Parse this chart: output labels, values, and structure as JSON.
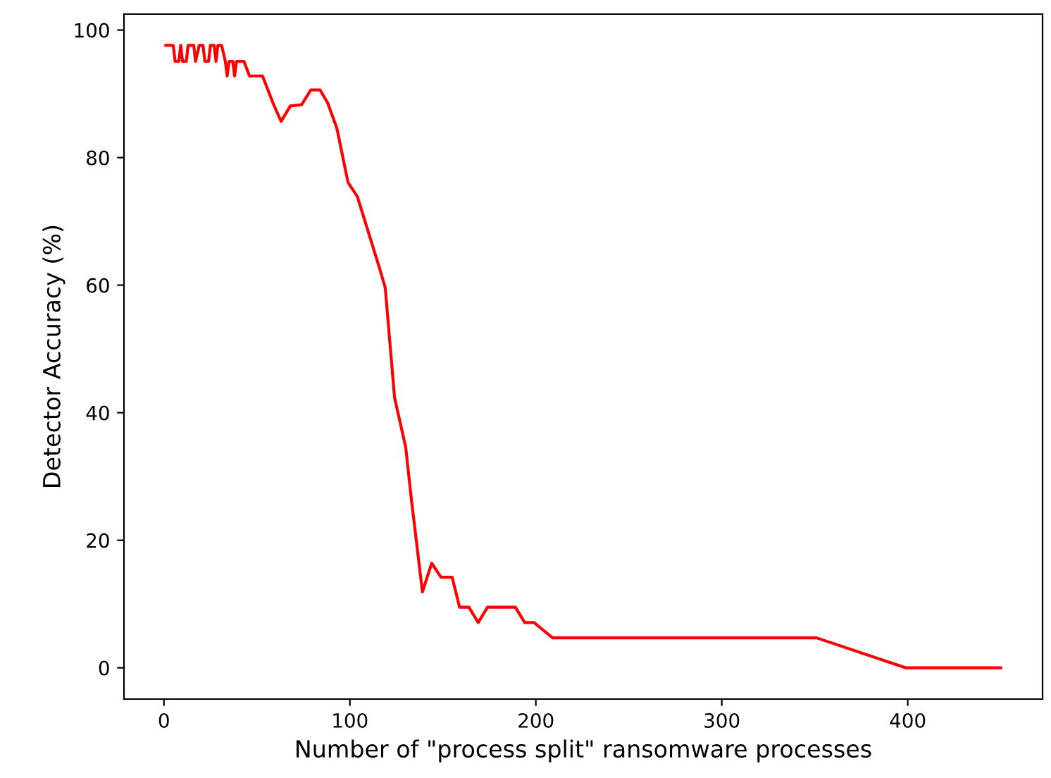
{
  "chart_data": {
    "type": "line",
    "xlabel": "Number of \"process split\" ransomware processes",
    "ylabel": "Detector Accuracy (%)",
    "x": [
      1,
      5,
      6,
      8,
      9,
      10,
      12,
      13,
      16,
      17,
      19,
      21,
      22,
      24,
      25,
      27,
      28,
      29,
      31,
      33,
      34,
      35,
      37,
      38,
      39,
      43,
      46,
      53,
      59,
      63,
      68,
      74,
      79,
      84,
      88,
      93,
      99,
      104,
      116,
      119,
      124,
      130,
      133,
      139,
      144,
      149,
      155,
      159,
      164,
      169,
      174,
      189,
      194,
      199,
      209,
      351,
      399,
      450
    ],
    "series": [
      {
        "color": "#ff0000",
        "values": [
          97.6,
          97.6,
          95.1,
          95.1,
          97.6,
          95.1,
          95.1,
          97.6,
          97.6,
          95.1,
          97.6,
          97.6,
          95.1,
          95.1,
          97.6,
          97.6,
          95.1,
          97.6,
          97.6,
          95.1,
          92.8,
          95.1,
          95.1,
          92.8,
          95.1,
          95.1,
          92.8,
          92.8,
          88.3,
          85.7,
          88.1,
          88.3,
          90.6,
          90.6,
          88.6,
          84.6,
          76.1,
          73.9,
          62.6,
          59.6,
          42.4,
          34.6,
          26.6,
          11.9,
          16.4,
          14.2,
          14.2,
          9.5,
          9.5,
          7.1,
          9.5,
          9.5,
          7.1,
          7.1,
          4.7,
          4.7,
          0,
          0
        ]
      }
    ],
    "xlim": [
      -21.5,
      472.5
    ],
    "ylim": [
      -4.9,
      102.5
    ],
    "xticks": [
      0,
      100,
      200,
      300,
      400
    ],
    "yticks": [
      0,
      20,
      40,
      60,
      80,
      100
    ],
    "grid": false,
    "legend": false
  }
}
